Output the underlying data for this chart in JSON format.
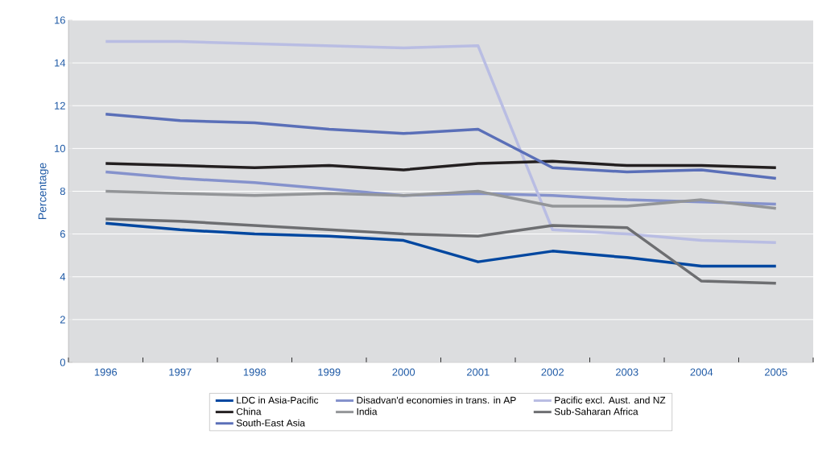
{
  "chart_data": {
    "type": "line",
    "ylabel": "Percentage",
    "categories": [
      "1996",
      "1997",
      "1998",
      "1999",
      "2000",
      "2001",
      "2002",
      "2003",
      "2004",
      "2005"
    ],
    "ylim": [
      0,
      16
    ],
    "yticks": [
      0,
      2,
      4,
      6,
      8,
      10,
      12,
      14,
      16
    ],
    "grid": "y",
    "legend": "bottom",
    "marker": "none",
    "line_style": "solid",
    "series": [
      {
        "name": "LDC in Asia-Pacific",
        "color": "#0047a0",
        "values": [
          6.5,
          6.2,
          6.0,
          5.9,
          5.7,
          4.7,
          5.2,
          4.9,
          4.5,
          4.5
        ]
      },
      {
        "name": "Disadvan'd economies in trans. in AP",
        "color": "#8592cc",
        "values": [
          8.9,
          8.6,
          8.4,
          8.1,
          7.8,
          7.9,
          7.8,
          7.6,
          7.5,
          7.4
        ]
      },
      {
        "name": "Pacific excl. Aust. and NZ",
        "color": "#b9bde3",
        "values": [
          15.0,
          15.0,
          14.9,
          14.8,
          14.7,
          14.8,
          6.2,
          6.0,
          5.7,
          5.6
        ]
      },
      {
        "name": "China",
        "color": "#231f20",
        "values": [
          9.3,
          9.2,
          9.1,
          9.2,
          9.0,
          9.3,
          9.4,
          9.2,
          9.2,
          9.1
        ]
      },
      {
        "name": "India",
        "color": "#939598",
        "values": [
          8.0,
          7.9,
          7.8,
          7.9,
          7.8,
          8.0,
          7.3,
          7.3,
          7.6,
          7.2
        ]
      },
      {
        "name": "Sub-Saharan Africa",
        "color": "#6d6e71",
        "values": [
          6.7,
          6.6,
          6.4,
          6.2,
          6.0,
          5.9,
          6.4,
          6.3,
          3.8,
          3.7
        ]
      },
      {
        "name": "South-East Asia",
        "color": "#5a6fb8",
        "values": [
          11.6,
          11.3,
          11.2,
          10.9,
          10.7,
          10.9,
          9.1,
          8.9,
          9.0,
          8.6
        ]
      }
    ]
  }
}
